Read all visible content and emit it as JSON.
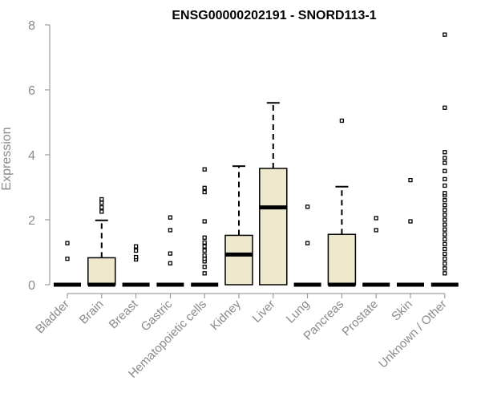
{
  "chart_data": {
    "type": "boxplot",
    "title": "ENSG00000202191 - SNORD113-1",
    "xlabel": "",
    "ylabel": "Expression",
    "ylim": [
      0,
      8
    ],
    "yticks": [
      0,
      2,
      4,
      6,
      8
    ],
    "grid": false,
    "legend": "none",
    "colors": {
      "box_fill": "#efe8cc",
      "box_stroke": "#000000",
      "axis": "#8a8a8a",
      "text": "#8a8a8a"
    },
    "categories": [
      "Bladder",
      "Brain",
      "Breast",
      "Gastric",
      "Hematopoietic cells",
      "Kidney",
      "Liver",
      "Lung",
      "Pancreas",
      "Prostate",
      "Skin",
      "Unknown / Other"
    ],
    "boxes": [
      {
        "name": "Bladder",
        "q1": 0,
        "median": 0,
        "q3": 0,
        "whisker_low": 0,
        "whisker_high": 0,
        "outliers": [
          0.8,
          1.28
        ]
      },
      {
        "name": "Brain",
        "q1": 0,
        "median": 0,
        "q3": 0.83,
        "whisker_low": 0,
        "whisker_high": 1.98,
        "outliers": [
          2.25,
          2.38,
          2.52,
          2.63
        ]
      },
      {
        "name": "Breast",
        "q1": 0,
        "median": 0,
        "q3": 0,
        "whisker_low": 0,
        "whisker_high": 0,
        "outliers": [
          0.78,
          0.85,
          1.05,
          1.18
        ]
      },
      {
        "name": "Gastric",
        "q1": 0,
        "median": 0,
        "q3": 0,
        "whisker_low": 0,
        "whisker_high": 0,
        "outliers": [
          0.66,
          0.96,
          1.68,
          2.07
        ]
      },
      {
        "name": "Hematopoietic cells",
        "q1": 0,
        "median": 0,
        "q3": 0,
        "whisker_low": 0,
        "whisker_high": 0,
        "outliers": [
          0.35,
          0.55,
          0.72,
          0.8,
          0.9,
          1.05,
          1.18,
          1.3,
          1.45,
          1.95,
          2.85,
          2.98,
          3.55
        ]
      },
      {
        "name": "Kidney",
        "q1": 0,
        "median": 0.93,
        "q3": 1.52,
        "whisker_low": 0,
        "whisker_high": 3.65,
        "outliers": []
      },
      {
        "name": "Liver",
        "q1": 0,
        "median": 2.38,
        "q3": 3.58,
        "whisker_low": 0,
        "whisker_high": 5.6,
        "outliers": []
      },
      {
        "name": "Lung",
        "q1": 0,
        "median": 0,
        "q3": 0,
        "whisker_low": 0,
        "whisker_high": 0,
        "outliers": [
          1.28,
          2.4
        ]
      },
      {
        "name": "Pancreas",
        "q1": 0,
        "median": 0,
        "q3": 1.55,
        "whisker_low": 0,
        "whisker_high": 3.02,
        "outliers": [
          5.05
        ]
      },
      {
        "name": "Prostate",
        "q1": 0,
        "median": 0,
        "q3": 0,
        "whisker_low": 0,
        "whisker_high": 0,
        "outliers": [
          1.68,
          2.05
        ]
      },
      {
        "name": "Skin",
        "q1": 0,
        "median": 0,
        "q3": 0,
        "whisker_low": 0,
        "whisker_high": 0,
        "outliers": [
          1.95,
          3.22
        ]
      },
      {
        "name": "Unknown / Other",
        "q1": 0,
        "median": 0,
        "q3": 0,
        "whisker_low": 0,
        "whisker_high": 0,
        "outliers": [
          0.35,
          0.5,
          0.65,
          0.8,
          0.95,
          1.1,
          1.25,
          1.4,
          1.55,
          1.7,
          1.85,
          2.0,
          2.15,
          2.3,
          2.45,
          2.6,
          2.75,
          2.82,
          3.05,
          3.25,
          3.5,
          3.75,
          3.9,
          4.08,
          5.45,
          7.7
        ]
      }
    ]
  }
}
